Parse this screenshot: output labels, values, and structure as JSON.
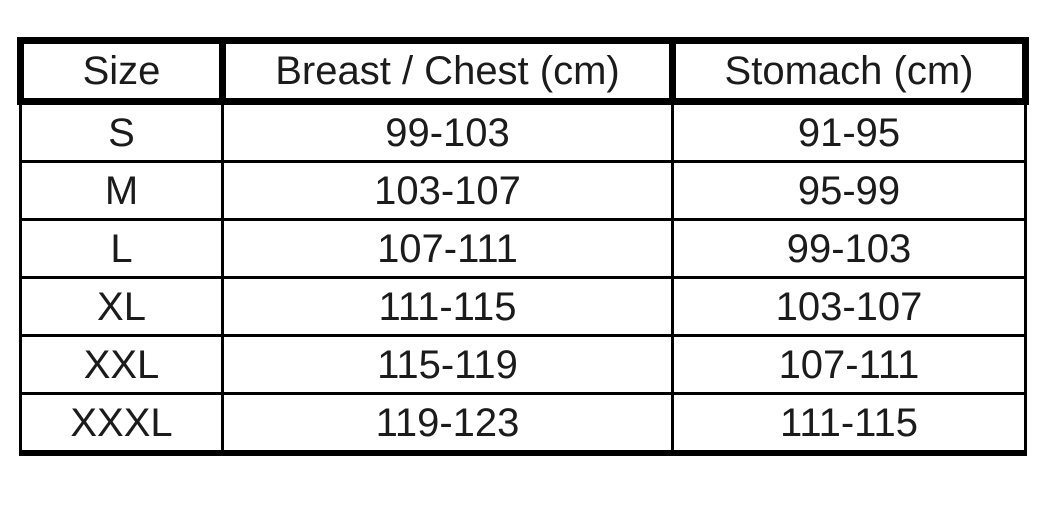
{
  "table": {
    "columns": [
      "Size",
      "Breast / Chest (cm)",
      "Stomach (cm)"
    ],
    "rows": [
      [
        "S",
        "99-103",
        "91-95"
      ],
      [
        "M",
        "103-107",
        "95-99"
      ],
      [
        "L",
        "107-111",
        "99-103"
      ],
      [
        "XL",
        "111-115",
        "103-107"
      ],
      [
        "XXL",
        "115-119",
        "107-111"
      ],
      [
        "XXXL",
        "119-123",
        "111-115"
      ]
    ]
  },
  "colors": {
    "border": "#000000",
    "text": "#1b1b1b",
    "background": "#ffffff"
  }
}
